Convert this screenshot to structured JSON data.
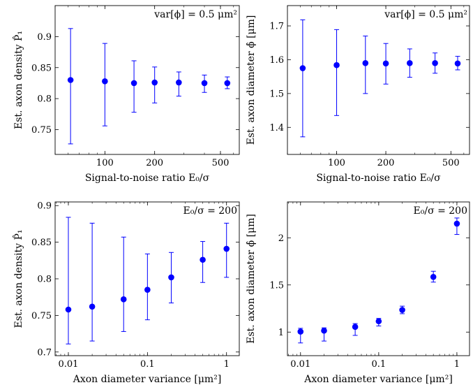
{
  "chart_data": [
    {
      "type": "scatter",
      "title": "",
      "xlabel": "Signal-to-noise ratio E₀/σ",
      "ylabel": "Est. axon density P̂₁",
      "annotation": "var[ϕ] = 0.5 μm²",
      "x_scale": "log",
      "xlim": [
        50,
        650
      ],
      "ylim": [
        0.71,
        0.95
      ],
      "x_ticks": [
        100,
        200,
        500
      ],
      "x_tick_labels": [
        "100",
        "200",
        "500"
      ],
      "y_ticks": [
        0.75,
        0.8,
        0.85,
        0.9
      ],
      "y_tick_labels": [
        "0.75",
        "0.8",
        "0.85",
        "0.9"
      ],
      "marker_color": "#0000ff",
      "points": [
        {
          "x": 62,
          "y": 0.83,
          "err_low": 0.727,
          "err_high": 0.913
        },
        {
          "x": 100,
          "y": 0.828,
          "err_low": 0.756,
          "err_high": 0.889
        },
        {
          "x": 150,
          "y": 0.825,
          "err_low": 0.778,
          "err_high": 0.861
        },
        {
          "x": 200,
          "y": 0.826,
          "err_low": 0.793,
          "err_high": 0.851
        },
        {
          "x": 280,
          "y": 0.826,
          "err_low": 0.804,
          "err_high": 0.843
        },
        {
          "x": 400,
          "y": 0.825,
          "err_low": 0.81,
          "err_high": 0.838
        },
        {
          "x": 550,
          "y": 0.825,
          "err_low": 0.816,
          "err_high": 0.835
        }
      ]
    },
    {
      "type": "scatter",
      "title": "",
      "xlabel": "Signal-to-noise ratio E₀/σ",
      "ylabel": "Est. axon diameter ϕ̂ [μm]",
      "annotation": "var[ϕ] = 0.5 μm²",
      "x_scale": "log",
      "xlim": [
        50,
        650
      ],
      "ylim": [
        1.32,
        1.76
      ],
      "x_ticks": [
        100,
        200,
        500
      ],
      "x_tick_labels": [
        "100",
        "200",
        "500"
      ],
      "y_ticks": [
        1.4,
        1.5,
        1.6,
        1.7
      ],
      "y_tick_labels": [
        "1.4",
        "1.5",
        "1.6",
        "1.7"
      ],
      "marker_color": "#0000ff",
      "points": [
        {
          "x": 62,
          "y": 1.575,
          "err_low": 1.372,
          "err_high": 1.718
        },
        {
          "x": 100,
          "y": 1.584,
          "err_low": 1.435,
          "err_high": 1.689
        },
        {
          "x": 150,
          "y": 1.59,
          "err_low": 1.5,
          "err_high": 1.67
        },
        {
          "x": 200,
          "y": 1.589,
          "err_low": 1.528,
          "err_high": 1.648
        },
        {
          "x": 280,
          "y": 1.59,
          "err_low": 1.548,
          "err_high": 1.632
        },
        {
          "x": 400,
          "y": 1.59,
          "err_low": 1.56,
          "err_high": 1.62
        },
        {
          "x": 550,
          "y": 1.589,
          "err_low": 1.57,
          "err_high": 1.61
        }
      ]
    },
    {
      "type": "scatter",
      "title": "",
      "xlabel": "Axon diameter variance [μm²]",
      "ylabel": "Est. axon density P̂₁",
      "annotation": "E₀/σ = 200",
      "x_scale": "log",
      "xlim": [
        0.0068,
        1.45
      ],
      "ylim": [
        0.695,
        0.905
      ],
      "x_ticks": [
        0.01,
        0.1,
        1
      ],
      "x_tick_labels": [
        "0.01",
        "0.1",
        "1"
      ],
      "y_ticks": [
        0.7,
        0.75,
        0.8,
        0.85,
        0.9
      ],
      "y_tick_labels": [
        "0.7",
        "0.75",
        "0.8",
        "0.85",
        "0.9"
      ],
      "marker_color": "#0000ff",
      "points": [
        {
          "x": 0.01,
          "y": 0.758,
          "err_low": 0.711,
          "err_high": 0.884
        },
        {
          "x": 0.02,
          "y": 0.762,
          "err_low": 0.715,
          "err_high": 0.876
        },
        {
          "x": 0.05,
          "y": 0.772,
          "err_low": 0.728,
          "err_high": 0.857
        },
        {
          "x": 0.1,
          "y": 0.785,
          "err_low": 0.744,
          "err_high": 0.834
        },
        {
          "x": 0.2,
          "y": 0.802,
          "err_low": 0.767,
          "err_high": 0.836
        },
        {
          "x": 0.5,
          "y": 0.826,
          "err_low": 0.795,
          "err_high": 0.851
        },
        {
          "x": 1,
          "y": 0.841,
          "err_low": 0.802,
          "err_high": 0.876
        }
      ]
    },
    {
      "type": "scatter",
      "title": "",
      "xlabel": "Axon diameter variance [μm²]",
      "ylabel": "Est. axon diameter ϕ̂ [μm]",
      "annotation": "E₀/σ = 200",
      "x_scale": "log",
      "xlim": [
        0.0068,
        1.45
      ],
      "ylim": [
        0.75,
        2.38
      ],
      "x_ticks": [
        0.01,
        0.1,
        1
      ],
      "x_tick_labels": [
        "0.01",
        "0.1",
        "1"
      ],
      "y_ticks": [
        1,
        1.5,
        2
      ],
      "y_tick_labels": [
        "1",
        "1.5",
        "2"
      ],
      "marker_color": "#0000ff",
      "points": [
        {
          "x": 0.01,
          "y": 1.005,
          "err_low": 0.885,
          "err_high": 1.04
        },
        {
          "x": 0.02,
          "y": 1.015,
          "err_low": 0.905,
          "err_high": 1.045
        },
        {
          "x": 0.05,
          "y": 1.055,
          "err_low": 0.965,
          "err_high": 1.09
        },
        {
          "x": 0.1,
          "y": 1.115,
          "err_low": 1.065,
          "err_high": 1.145
        },
        {
          "x": 0.2,
          "y": 1.235,
          "err_low": 1.195,
          "err_high": 1.275
        },
        {
          "x": 0.5,
          "y": 1.585,
          "err_low": 1.53,
          "err_high": 1.645
        },
        {
          "x": 1,
          "y": 2.15,
          "err_low": 2.035,
          "err_high": 2.21
        }
      ]
    }
  ]
}
